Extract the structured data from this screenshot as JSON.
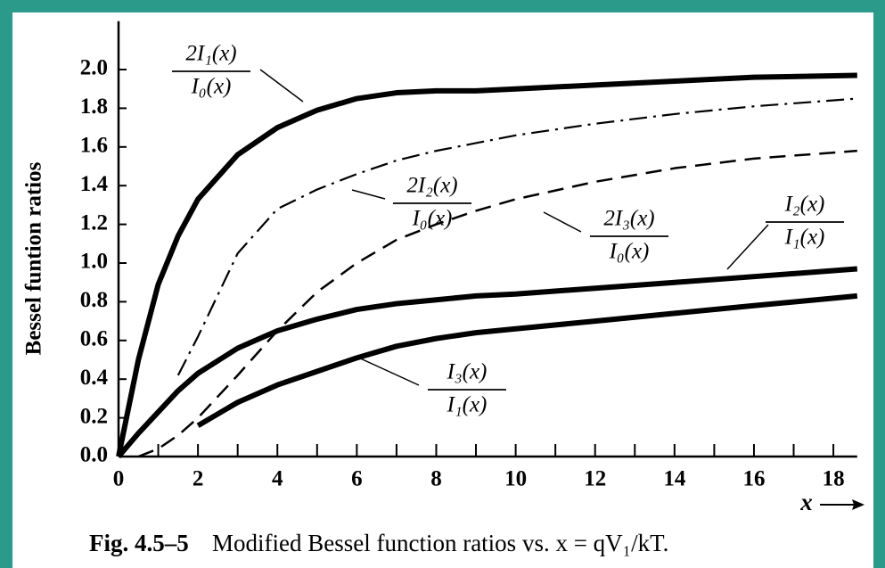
{
  "chart_data": {
    "type": "line",
    "ylabel": "Bessel funtion ratios",
    "xlabel": "x",
    "figure_label": "Fig. 4.5–5",
    "caption": "Modified Bessel function ratios vs. x = qV₁/kT.",
    "xlim": [
      0,
      18.6
    ],
    "ylim": [
      0,
      2.25
    ],
    "xticks": [
      0,
      2,
      4,
      6,
      8,
      10,
      12,
      14,
      16,
      18
    ],
    "xminorticks": [
      1,
      3,
      5,
      7,
      9,
      11,
      13,
      15,
      17
    ],
    "yticks": [
      {
        "value": 0,
        "label": "0.0"
      },
      0.2,
      0.4,
      0.6,
      0.8,
      {
        "value": 1,
        "label": "1.0"
      },
      1.2,
      1.4,
      1.6,
      1.8,
      {
        "value": 2,
        "label": "2.0"
      }
    ],
    "x": [
      0,
      0.5,
      1,
      1.5,
      2,
      3,
      4,
      5,
      6,
      7,
      8,
      9,
      10,
      12,
      14,
      16,
      18.6
    ],
    "series": [
      {
        "numerator": "2I₁(x)",
        "denominator": "I₀(x)",
        "color": "#000000",
        "style": "thick",
        "values": [
          0,
          0.5,
          0.89,
          1.14,
          1.33,
          1.56,
          1.7,
          1.79,
          1.85,
          1.88,
          1.89,
          1.89,
          1.9,
          1.92,
          1.94,
          1.96,
          1.97
        ]
      },
      {
        "numerator": "2I₂(x)",
        "denominator": "I₀(x)",
        "color": "#000000",
        "style": "dashdot",
        "values": [
          null,
          null,
          null,
          0.42,
          0.62,
          1.05,
          1.28,
          1.38,
          1.46,
          1.53,
          1.58,
          1.62,
          1.66,
          1.72,
          1.77,
          1.81,
          1.85
        ]
      },
      {
        "numerator": "2I₃(x)",
        "denominator": "I₀(x)",
        "color": "#000000",
        "style": "dashed",
        "values": [
          null,
          0,
          0.04,
          0.11,
          0.2,
          0.42,
          0.65,
          0.85,
          1.0,
          1.12,
          1.2,
          1.27,
          1.33,
          1.42,
          1.49,
          1.54,
          1.58
        ]
      },
      {
        "numerator": "I₂(x)",
        "denominator": "I₁(x)",
        "color": "#000000",
        "style": "thick",
        "values": [
          0,
          0.12,
          0.23,
          0.34,
          0.43,
          0.56,
          0.65,
          0.71,
          0.76,
          0.79,
          0.81,
          0.83,
          0.84,
          0.87,
          0.9,
          0.93,
          0.97
        ]
      },
      {
        "numerator": "I₃(x)",
        "denominator": "I₁(x)",
        "color": "#000000",
        "style": "thick",
        "values": [
          null,
          null,
          null,
          null,
          0.16,
          0.28,
          0.37,
          0.44,
          0.51,
          0.57,
          0.61,
          0.64,
          0.66,
          0.7,
          0.74,
          0.78,
          0.83
        ]
      }
    ]
  }
}
